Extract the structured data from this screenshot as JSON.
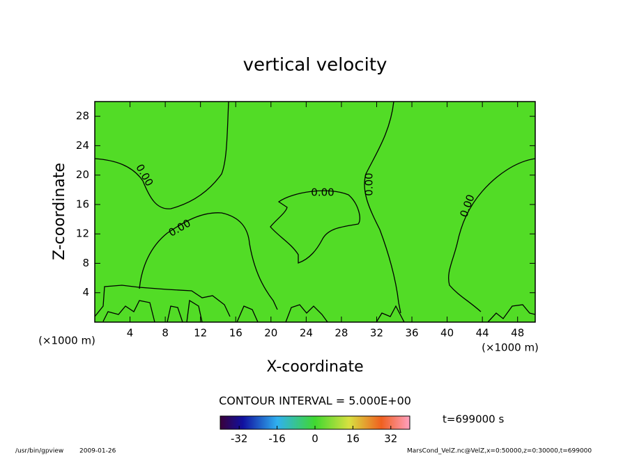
{
  "chart_data": {
    "type": "contour",
    "title": "vertical velocity",
    "xlabel": "X-coordinate",
    "ylabel": "Z-coordinate",
    "x_unit": "(×1000 m)",
    "xlim": [
      0,
      50
    ],
    "xticks": [
      4,
      8,
      12,
      16,
      20,
      24,
      28,
      32,
      36,
      40,
      44,
      48
    ],
    "ylim": [
      0,
      30
    ],
    "yticks": [
      4,
      8,
      12,
      16,
      20,
      24,
      28
    ],
    "levels": [
      0
    ],
    "level_labels": [
      "0.00"
    ],
    "fill_color": "#52dc26",
    "line_color": "#000000",
    "contour_interval": "CONTOUR INTERVAL = 5.000E+00",
    "colorbar": {
      "lim": [
        -40,
        40
      ],
      "ticks": [
        -32,
        -16,
        0,
        16,
        32
      ]
    },
    "time": "t=699000 s",
    "footer_left": "/usr/bin/gpview",
    "footer_date": "2009-01-26",
    "footer_right": "MarsCond_VelZ.nc@VelZ,x=0:50000,z=0:30000,t=699000"
  }
}
